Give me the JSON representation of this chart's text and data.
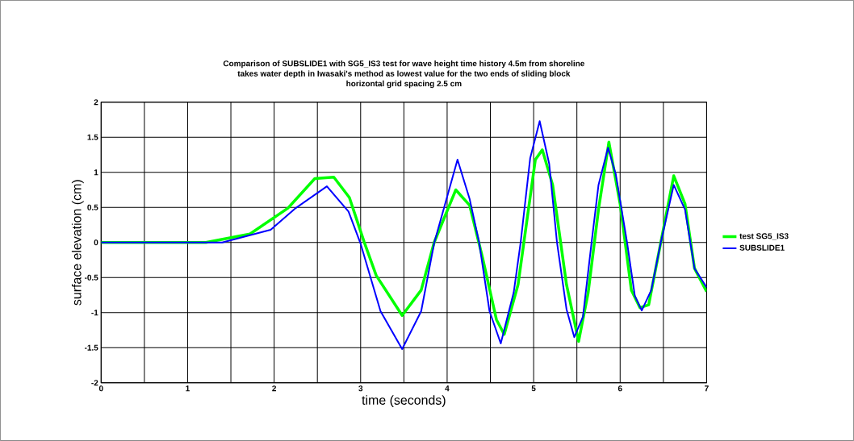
{
  "chart_data": {
    "type": "line",
    "title": "Comparison of SUBSLIDE1 with SG5_IS3 test for wave height time history 4.5m from shoreline\ntakes water depth in Iwasaki's method as lowest value for the two ends of sliding block\nhorizontal grid spacing 2.5 cm",
    "xlabel": "time (seconds)",
    "ylabel": "surface elevation (cm)",
    "xlim": [
      0,
      7
    ],
    "ylim": [
      -2,
      2
    ],
    "xticks": [
      0,
      {
        "value": 0.5,
        "label": null
      },
      1,
      {
        "value": 1.5,
        "label": null
      },
      2,
      {
        "value": 2.5,
        "label": null
      },
      3,
      {
        "value": 3.5,
        "label": null
      },
      4,
      {
        "value": 4.5,
        "label": null
      },
      5,
      {
        "value": 5.5,
        "label": null
      },
      6,
      {
        "value": 6.5,
        "label": null
      },
      7
    ],
    "yticks": [
      -2,
      -1.5,
      -1,
      -0.5,
      0,
      0.5,
      1,
      1.5,
      2
    ],
    "grid": true,
    "legend": "right",
    "series": [
      {
        "name": "test SG5_IS3",
        "color": "#00ff00",
        "x": [
          0,
          1.21,
          1.72,
          2.16,
          2.47,
          2.69,
          2.87,
          3.04,
          3.18,
          3.48,
          3.7,
          3.85,
          4.1,
          4.26,
          4.41,
          4.57,
          4.66,
          4.82,
          4.94,
          5.02,
          5.1,
          5.22,
          5.38,
          5.52,
          5.63,
          5.75,
          5.87,
          6.0,
          6.13,
          6.23,
          6.33,
          6.47,
          6.62,
          6.75,
          6.86,
          7.0
        ],
        "values": [
          0,
          0,
          0.12,
          0.49,
          0.91,
          0.93,
          0.64,
          0.01,
          -0.47,
          -1.04,
          -0.68,
          0,
          0.75,
          0.53,
          -0.22,
          -1.1,
          -1.31,
          -0.6,
          0.47,
          1.18,
          1.32,
          0.82,
          -0.6,
          -1.41,
          -0.72,
          0.47,
          1.43,
          0.55,
          -0.68,
          -0.93,
          -0.89,
          0,
          0.95,
          0.55,
          -0.37,
          -0.7
        ]
      },
      {
        "name": "SUBSLIDE1",
        "color": "#0000ff",
        "x": [
          0,
          1.4,
          1.96,
          2.25,
          2.61,
          2.86,
          3.0,
          3.23,
          3.48,
          3.7,
          3.85,
          4.12,
          4.26,
          4.37,
          4.49,
          4.62,
          4.77,
          4.85,
          4.96,
          5.07,
          5.18,
          5.27,
          5.38,
          5.47,
          5.57,
          5.67,
          5.75,
          5.86,
          5.95,
          6.08,
          6.17,
          6.25,
          6.36,
          6.47,
          6.62,
          6.75,
          6.86,
          7.0
        ],
        "values": [
          0,
          0,
          0.18,
          0.49,
          0.8,
          0.44,
          -0.02,
          -0.98,
          -1.52,
          -0.98,
          -0.01,
          1.18,
          0.62,
          0,
          -0.98,
          -1.44,
          -0.71,
          0,
          1.2,
          1.73,
          1.12,
          0,
          -0.95,
          -1.35,
          -1.06,
          0,
          0.82,
          1.35,
          0.97,
          0,
          -0.76,
          -0.97,
          -0.68,
          0,
          0.82,
          0.47,
          -0.37,
          -0.64
        ]
      }
    ]
  }
}
